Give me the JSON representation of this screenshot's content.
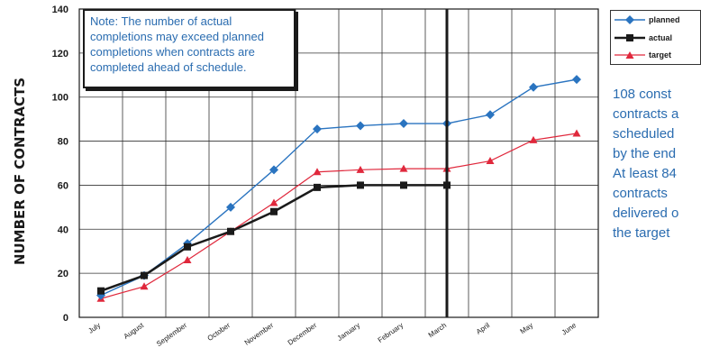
{
  "chart_data": {
    "type": "line",
    "ylabel": "NUMBER OF CONTRACTS",
    "categories": [
      "July",
      "August",
      "September",
      "October",
      "November",
      "December",
      "January",
      "February",
      "March",
      "April",
      "May",
      "June"
    ],
    "ylim": [
      0,
      140
    ],
    "yticks": [
      0,
      20,
      40,
      60,
      80,
      100,
      120,
      140
    ],
    "grid": true,
    "legend_position": "top-right",
    "series": [
      {
        "name": "planned",
        "color": "#2a74c0",
        "marker": "diamond",
        "values": [
          10,
          19,
          33.5,
          50,
          67,
          85.5,
          87,
          88,
          88,
          92,
          104.5,
          108
        ]
      },
      {
        "name": "actual",
        "color": "#1a1a1a",
        "marker": "square",
        "values": [
          12,
          19,
          32,
          39,
          48,
          59,
          60,
          60,
          60,
          null,
          null,
          null
        ]
      },
      {
        "name": "target",
        "color": "#e0283c",
        "marker": "triangle",
        "values": [
          8.5,
          14,
          26,
          39,
          52,
          66,
          67,
          67.5,
          67.5,
          71,
          80.5,
          83.5
        ]
      }
    ],
    "vertical_marker_category": "March"
  },
  "note": {
    "lines": [
      "Note: The number of actual",
      "completions may exceed planned",
      "completions when contracts are",
      "completed ahead of schedule."
    ]
  },
  "side_text": {
    "lines": [
      "108 const",
      "contracts a",
      "scheduled",
      "by the end",
      "At least 84",
      "contracts",
      "delivered o",
      "the target"
    ]
  },
  "colors": {
    "planned": "#2a74c0",
    "actual": "#1a1a1a",
    "target": "#e0283c",
    "note_text": "#2a6cb0"
  }
}
